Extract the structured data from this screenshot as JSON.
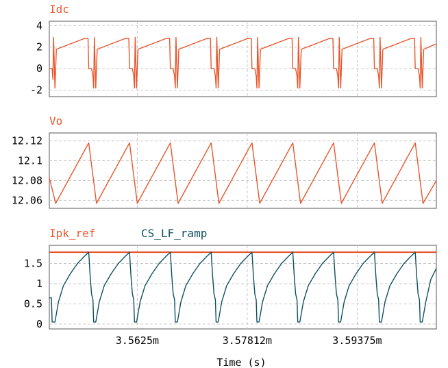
{
  "chart_data": [
    {
      "type": "line",
      "title": "",
      "xlabel": "",
      "ylabel": "",
      "ylim": [
        -2.6,
        4.4
      ],
      "yticks": [
        4,
        2,
        0,
        -2
      ],
      "xlim": [
        3.55,
        3.605
      ],
      "grid": true,
      "legend": "top-left",
      "series": [
        {
          "name": "Idc",
          "color": "#e8552a",
          "x": [
            3.55,
            3.5504,
            3.5505,
            3.5506,
            3.5508,
            3.551,
            3.555,
            3.5555,
            3.5556,
            3.556,
            3.5562,
            3.5563,
            3.5564,
            3.5566,
            3.5568,
            3.5608,
            3.5613,
            3.5614,
            3.5618,
            3.562,
            3.5621,
            3.5622,
            3.5624,
            3.5626,
            3.5666,
            3.5671,
            3.5672,
            3.5676,
            3.5678,
            3.5679,
            3.568,
            3.5682,
            3.5684,
            3.5724,
            3.5729,
            3.573,
            3.5734,
            3.5736,
            3.5737,
            3.5738,
            3.574,
            3.5742,
            3.5782,
            3.5787,
            3.5788,
            3.5792,
            3.5794,
            3.5795,
            3.5796,
            3.5798,
            3.58,
            3.584,
            3.5845,
            3.5846,
            3.585,
            3.5852,
            3.5853,
            3.5854,
            3.5856,
            3.5858,
            3.5898,
            3.5903,
            3.5904,
            3.5908,
            3.591,
            3.5911,
            3.5912,
            3.5914,
            3.5916,
            3.5956,
            3.5961,
            3.5962,
            3.5966,
            3.5968,
            3.5969,
            3.597,
            3.5972,
            3.5974,
            3.6014,
            3.6019,
            3.602,
            3.6024,
            3.6026,
            3.6027,
            3.6028,
            3.603,
            3.6032,
            3.605
          ],
          "values": [
            0.0,
            0.0,
            -1.0,
            2.9,
            -1.8,
            1.8,
            2.8,
            2.8,
            0.0,
            0.0,
            -0.7,
            -1.8,
            2.9,
            -1.8,
            1.8,
            2.8,
            2.8,
            0.0,
            0.0,
            -0.7,
            -1.8,
            2.9,
            -1.8,
            1.8,
            2.8,
            2.8,
            0.0,
            0.0,
            -0.7,
            -1.8,
            2.9,
            -1.8,
            1.8,
            2.8,
            2.8,
            0.0,
            0.0,
            -0.7,
            -1.8,
            2.9,
            -1.8,
            1.8,
            2.8,
            2.8,
            0.0,
            0.0,
            -0.7,
            -1.8,
            2.9,
            -1.8,
            1.8,
            2.8,
            2.8,
            0.0,
            0.0,
            -0.7,
            -1.8,
            2.9,
            -1.8,
            1.8,
            2.8,
            2.8,
            0.0,
            0.0,
            -0.7,
            -1.8,
            2.9,
            -1.8,
            1.8,
            2.8,
            2.8,
            0.0,
            0.0,
            -0.7,
            -1.8,
            2.9,
            -1.8,
            1.8,
            2.8,
            2.8,
            0.0,
            0.0,
            -0.7,
            -1.8,
            2.9,
            -1.8,
            1.8,
            2.3
          ]
        }
      ]
    },
    {
      "type": "line",
      "title": "",
      "xlabel": "",
      "ylabel": "",
      "ylim": [
        12.052,
        12.128
      ],
      "yticks": [
        12.12,
        12.1,
        12.08,
        12.06
      ],
      "xlim": [
        3.55,
        3.605
      ],
      "grid": true,
      "legend": "top-left",
      "series": [
        {
          "name": "Vo",
          "color": "#e8552a",
          "x": [
            3.55,
            3.5509,
            3.5556,
            3.5567,
            3.5614,
            3.5625,
            3.5672,
            3.5683,
            3.573,
            3.5741,
            3.5788,
            3.5799,
            3.5846,
            3.5857,
            3.5904,
            3.5915,
            3.5962,
            3.5973,
            3.602,
            3.6031,
            3.605
          ],
          "values": [
            12.083,
            12.057,
            12.118,
            12.057,
            12.118,
            12.057,
            12.118,
            12.057,
            12.118,
            12.057,
            12.118,
            12.057,
            12.118,
            12.057,
            12.118,
            12.057,
            12.118,
            12.057,
            12.118,
            12.057,
            12.08
          ]
        }
      ]
    },
    {
      "type": "line",
      "title": "",
      "xlabel": "Time (s)",
      "ylabel": "",
      "ylim": [
        -0.12,
        1.95
      ],
      "yticks": [
        1.5,
        1,
        0.5,
        0
      ],
      "xlim": [
        3.55,
        3.605
      ],
      "xticks": [
        3.5625,
        3.57812,
        3.59375
      ],
      "xtick_labels": [
        "3.5625m",
        "3.57812m",
        "3.59375m"
      ],
      "grid": true,
      "legend": "top-left",
      "series": [
        {
          "name": "Ipk_ref",
          "color": "#e8552a",
          "x": [
            3.55,
            3.605
          ],
          "values": [
            1.78,
            1.78
          ]
        },
        {
          "name": "CS_LF_ramp",
          "color": "#0e4f5e",
          "x": [
            3.55,
            3.5503,
            3.5504,
            3.5505,
            3.5508,
            3.551,
            3.5513,
            3.552,
            3.553,
            3.554,
            3.555,
            3.5556,
            3.5558,
            3.556,
            3.5562,
            3.5563,
            3.5566,
            3.5568,
            3.5571,
            3.5578,
            3.5588,
            3.5598,
            3.5608,
            3.5614,
            3.5616,
            3.5618,
            3.562,
            3.5621,
            3.5624,
            3.5626,
            3.5629,
            3.5636,
            3.5646,
            3.5656,
            3.5666,
            3.5672,
            3.5674,
            3.5676,
            3.5678,
            3.5679,
            3.5682,
            3.5684,
            3.5687,
            3.5694,
            3.5704,
            3.5714,
            3.5724,
            3.573,
            3.5732,
            3.5734,
            3.5736,
            3.5737,
            3.574,
            3.5742,
            3.5745,
            3.5752,
            3.5762,
            3.5772,
            3.5782,
            3.5788,
            3.579,
            3.5792,
            3.5794,
            3.5795,
            3.5798,
            3.58,
            3.5803,
            3.581,
            3.582,
            3.583,
            3.584,
            3.5846,
            3.5848,
            3.585,
            3.5852,
            3.5853,
            3.5856,
            3.5858,
            3.5861,
            3.5868,
            3.5878,
            3.5888,
            3.5898,
            3.5904,
            3.5906,
            3.5908,
            3.591,
            3.5911,
            3.5914,
            3.5916,
            3.5919,
            3.5926,
            3.5936,
            3.5946,
            3.5956,
            3.5962,
            3.5964,
            3.5966,
            3.5968,
            3.5969,
            3.5972,
            3.5974,
            3.5977,
            3.5984,
            3.5994,
            3.6004,
            3.6014,
            3.602,
            3.6022,
            3.6024,
            3.6026,
            3.6027,
            3.603,
            3.6032,
            3.6035,
            3.6042,
            3.605
          ],
          "values": [
            0.65,
            0.65,
            0.05,
            0.05,
            0.05,
            0.25,
            0.55,
            0.95,
            1.25,
            1.5,
            1.68,
            1.78,
            1.2,
            0.75,
            0.6,
            0.05,
            0.05,
            0.25,
            0.55,
            0.95,
            1.25,
            1.5,
            1.68,
            1.78,
            1.2,
            0.75,
            0.6,
            0.05,
            0.05,
            0.25,
            0.55,
            0.95,
            1.25,
            1.5,
            1.68,
            1.78,
            1.2,
            0.75,
            0.6,
            0.05,
            0.05,
            0.25,
            0.55,
            0.95,
            1.25,
            1.5,
            1.68,
            1.78,
            1.2,
            0.75,
            0.6,
            0.05,
            0.05,
            0.25,
            0.55,
            0.95,
            1.25,
            1.5,
            1.68,
            1.78,
            1.2,
            0.75,
            0.6,
            0.05,
            0.05,
            0.25,
            0.55,
            0.95,
            1.25,
            1.5,
            1.68,
            1.78,
            1.2,
            0.75,
            0.6,
            0.05,
            0.05,
            0.25,
            0.55,
            0.95,
            1.25,
            1.5,
            1.68,
            1.78,
            1.2,
            0.75,
            0.6,
            0.05,
            0.05,
            0.25,
            0.55,
            0.95,
            1.25,
            1.5,
            1.68,
            1.78,
            1.2,
            0.75,
            0.6,
            0.05,
            0.05,
            0.25,
            0.55,
            0.95,
            1.25,
            1.5,
            1.68,
            1.78,
            1.2,
            0.75,
            0.6,
            0.05,
            0.05,
            0.25,
            0.55,
            1.1,
            1.38
          ]
        }
      ]
    }
  ]
}
